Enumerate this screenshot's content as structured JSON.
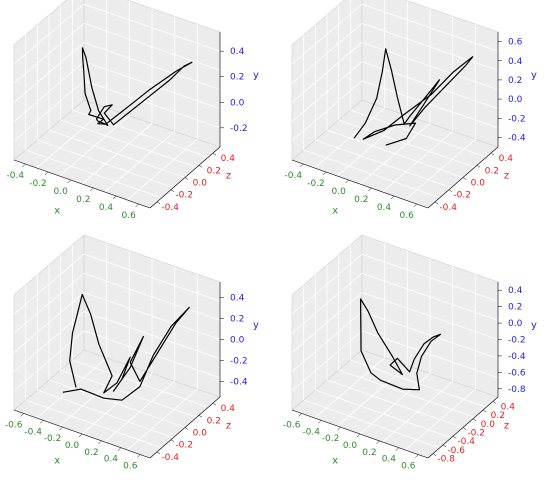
{
  "colors": {
    "x_axis": "#2e8b2e",
    "y_axis": "#1f1fe0",
    "z_axis": "#e02020",
    "pane": "#ececec",
    "pane_edge": "#d0d0d0",
    "grid": "#ffffff",
    "curve": "#000000"
  },
  "chart_data": [
    {
      "type": "line",
      "title": "",
      "projection": "3d",
      "grid": true,
      "axes": {
        "x": {
          "label": "x",
          "ticks": [
            "-0.4",
            "-0.2",
            "0.0",
            "0.2",
            "0.4",
            "0.6"
          ],
          "lim": [
            -0.5,
            0.7
          ]
        },
        "y": {
          "label": "y",
          "ticks": [
            "-0.2",
            "0.0",
            "0.2",
            "0.4"
          ],
          "lim": [
            -0.35,
            0.55
          ]
        },
        "z": {
          "label": "z",
          "ticks": [
            "-0.4",
            "-0.2",
            "0.0",
            "0.2",
            "0.4"
          ],
          "lim": [
            -0.5,
            0.5
          ]
        }
      },
      "series": [
        {
          "points": [
            [
              -0.05,
              -0.15,
              -0.05
            ],
            [
              -0.15,
              -0.12,
              0.0
            ],
            [
              -0.1,
              -0.05,
              0.05
            ],
            [
              -0.12,
              0.1,
              0.1
            ],
            [
              -0.1,
              0.3,
              0.15
            ],
            [
              -0.08,
              0.45,
              0.2
            ],
            [
              -0.05,
              0.55,
              0.25
            ],
            [
              -0.05,
              0.45,
              0.2
            ],
            [
              -0.03,
              0.2,
              0.15
            ],
            [
              0.0,
              0.0,
              0.1
            ],
            [
              0.05,
              -0.12,
              0.05
            ],
            [
              0.0,
              -0.15,
              0.0
            ],
            [
              -0.1,
              -0.18,
              -0.05
            ],
            [
              -0.05,
              -0.1,
              0.05
            ],
            [
              0.05,
              0.05,
              0.1
            ],
            [
              0.15,
              0.12,
              0.15
            ],
            [
              0.05,
              0.0,
              0.1
            ],
            [
              0.1,
              -0.1,
              0.05
            ],
            [
              0.2,
              0.0,
              0.0
            ],
            [
              0.35,
              0.15,
              -0.05
            ],
            [
              0.5,
              0.3,
              -0.1
            ],
            [
              0.6,
              0.42,
              -0.15
            ],
            [
              0.65,
              0.45,
              -0.18
            ],
            [
              0.55,
              0.38,
              -0.12
            ],
            [
              0.35,
              0.2,
              -0.05
            ],
            [
              0.15,
              0.0,
              0.0
            ],
            [
              0.0,
              -0.15,
              0.0
            ],
            [
              -0.1,
              -0.2,
              -0.05
            ],
            [
              -0.05,
              -0.15,
              -0.05
            ]
          ]
        }
      ]
    },
    {
      "type": "line",
      "title": "",
      "projection": "3d",
      "grid": true,
      "axes": {
        "x": {
          "label": "x",
          "ticks": [
            "-0.4",
            "-0.2",
            "0.0",
            "0.2",
            "0.4",
            "0.6"
          ],
          "lim": [
            -0.5,
            0.7
          ]
        },
        "y": {
          "label": "y",
          "ticks": [
            "-0.4",
            "-0.2",
            "0.0",
            "0.2",
            "0.4",
            "0.6"
          ],
          "lim": [
            -0.5,
            0.7
          ]
        },
        "z": {
          "label": "z",
          "ticks": [
            "-0.4",
            "-0.2",
            "0.0",
            "0.2",
            "0.4"
          ],
          "lim": [
            -0.5,
            0.5
          ]
        }
      },
      "series": [
        {
          "points": [
            [
              -0.2,
              -0.4,
              0.1
            ],
            [
              -0.1,
              -0.2,
              0.1
            ],
            [
              0.0,
              0.1,
              0.1
            ],
            [
              0.05,
              0.4,
              0.1
            ],
            [
              0.08,
              0.65,
              0.1
            ],
            [
              0.1,
              0.4,
              0.05
            ],
            [
              0.12,
              0.1,
              0.0
            ],
            [
              0.15,
              -0.2,
              -0.05
            ],
            [
              0.2,
              -0.1,
              -0.05
            ],
            [
              0.3,
              0.1,
              -0.1
            ],
            [
              0.4,
              0.3,
              -0.15
            ],
            [
              0.3,
              0.05,
              -0.1
            ],
            [
              0.2,
              -0.2,
              -0.05
            ],
            [
              0.3,
              0.0,
              -0.1
            ],
            [
              0.45,
              0.25,
              -0.15
            ],
            [
              0.6,
              0.5,
              -0.2
            ],
            [
              0.65,
              0.6,
              -0.22
            ],
            [
              0.5,
              0.4,
              -0.18
            ],
            [
              0.35,
              0.15,
              -0.12
            ],
            [
              0.15,
              -0.1,
              -0.05
            ],
            [
              0.0,
              -0.3,
              0.0
            ],
            [
              -0.15,
              -0.42,
              0.05
            ],
            [
              -0.05,
              -0.3,
              0.05
            ],
            [
              0.1,
              -0.2,
              0.0
            ],
            [
              0.25,
              -0.15,
              -0.05
            ],
            [
              0.2,
              -0.3,
              0.0
            ],
            [
              0.05,
              -0.4,
              0.05
            ]
          ]
        }
      ]
    },
    {
      "type": "line",
      "title": "",
      "projection": "3d",
      "grid": true,
      "axes": {
        "x": {
          "label": "x",
          "ticks": [
            "-0.6",
            "-0.4",
            "-0.2",
            "0.0",
            "0.2",
            "0.4",
            "0.6"
          ],
          "lim": [
            -0.7,
            0.7
          ]
        },
        "y": {
          "label": "y",
          "ticks": [
            "-0.4",
            "-0.2",
            "0.0",
            "0.2",
            "0.4"
          ],
          "lim": [
            -0.55,
            0.55
          ]
        },
        "z": {
          "label": "z",
          "ticks": [
            "-0.4",
            "-0.2",
            "0.0",
            "0.2",
            "0.4"
          ],
          "lim": [
            -0.5,
            0.5
          ]
        }
      },
      "series": [
        {
          "points": [
            [
              -0.35,
              -0.45,
              0.1
            ],
            [
              -0.4,
              -0.2,
              0.12
            ],
            [
              -0.35,
              0.1,
              0.15
            ],
            [
              -0.3,
              0.3,
              0.15
            ],
            [
              -0.25,
              0.5,
              0.15
            ],
            [
              -0.2,
              0.3,
              0.1
            ],
            [
              -0.15,
              0.0,
              0.05
            ],
            [
              -0.05,
              -0.3,
              0.0
            ],
            [
              -0.1,
              -0.45,
              0.05
            ],
            [
              0.0,
              -0.35,
              0.0
            ],
            [
              0.1,
              -0.1,
              -0.05
            ],
            [
              0.05,
              -0.3,
              0.0
            ],
            [
              0.0,
              -0.4,
              0.05
            ],
            [
              0.1,
              -0.2,
              -0.05
            ],
            [
              0.2,
              0.1,
              -0.1
            ],
            [
              0.1,
              -0.15,
              -0.05
            ],
            [
              0.2,
              -0.3,
              -0.05
            ],
            [
              0.35,
              0.0,
              -0.1
            ],
            [
              0.5,
              0.3,
              -0.15
            ],
            [
              0.6,
              0.45,
              -0.2
            ],
            [
              0.45,
              0.25,
              -0.15
            ],
            [
              0.3,
              -0.05,
              -0.1
            ],
            [
              0.2,
              -0.35,
              -0.05
            ],
            [
              0.05,
              -0.5,
              0.0
            ],
            [
              -0.1,
              -0.5,
              0.05
            ],
            [
              -0.3,
              -0.45,
              0.1
            ],
            [
              -0.45,
              -0.5,
              0.15
            ]
          ]
        }
      ]
    },
    {
      "type": "line",
      "title": "",
      "projection": "3d",
      "grid": true,
      "axes": {
        "x": {
          "label": "x",
          "ticks": [
            "-0.6",
            "-0.4",
            "-0.2",
            "0.0",
            "0.2",
            "0.4",
            "0.6"
          ],
          "lim": [
            -0.7,
            0.7
          ]
        },
        "y": {
          "label": "y",
          "ticks": [
            "-0.8",
            "-0.6",
            "-0.4",
            "-0.2",
            "0.0",
            "0.2",
            "0.4"
          ],
          "lim": [
            -0.9,
            0.5
          ]
        },
        "z": {
          "label": "z",
          "ticks": [
            "-0.8",
            "-0.6",
            "-0.4",
            "-0.2",
            "0.0",
            "0.2",
            "0.4"
          ],
          "lim": [
            -0.9,
            0.5
          ]
        }
      },
      "series": [
        {
          "points": [
            [
              -0.3,
              -0.7,
              -0.3
            ],
            [
              -0.35,
              -0.4,
              -0.2
            ],
            [
              -0.3,
              -0.1,
              -0.1
            ],
            [
              -0.25,
              0.2,
              0.0
            ],
            [
              -0.2,
              0.45,
              0.1
            ],
            [
              -0.15,
              0.3,
              0.05
            ],
            [
              -0.1,
              0.0,
              -0.05
            ],
            [
              0.0,
              -0.3,
              -0.15
            ],
            [
              0.05,
              -0.55,
              -0.25
            ],
            [
              -0.05,
              -0.45,
              -0.2
            ],
            [
              0.05,
              -0.3,
              -0.15
            ],
            [
              0.15,
              -0.45,
              -0.2
            ],
            [
              0.25,
              -0.2,
              -0.1
            ],
            [
              0.4,
              0.1,
              0.0
            ],
            [
              0.55,
              0.3,
              0.1
            ],
            [
              0.65,
              0.4,
              0.15
            ],
            [
              0.5,
              0.2,
              0.05
            ],
            [
              0.35,
              -0.1,
              -0.05
            ],
            [
              0.25,
              -0.4,
              -0.15
            ],
            [
              0.2,
              -0.7,
              -0.3
            ],
            [
              0.0,
              -0.8,
              -0.35
            ],
            [
              -0.2,
              -0.75,
              -0.3
            ],
            [
              -0.3,
              -0.7,
              -0.3
            ]
          ]
        }
      ]
    }
  ]
}
